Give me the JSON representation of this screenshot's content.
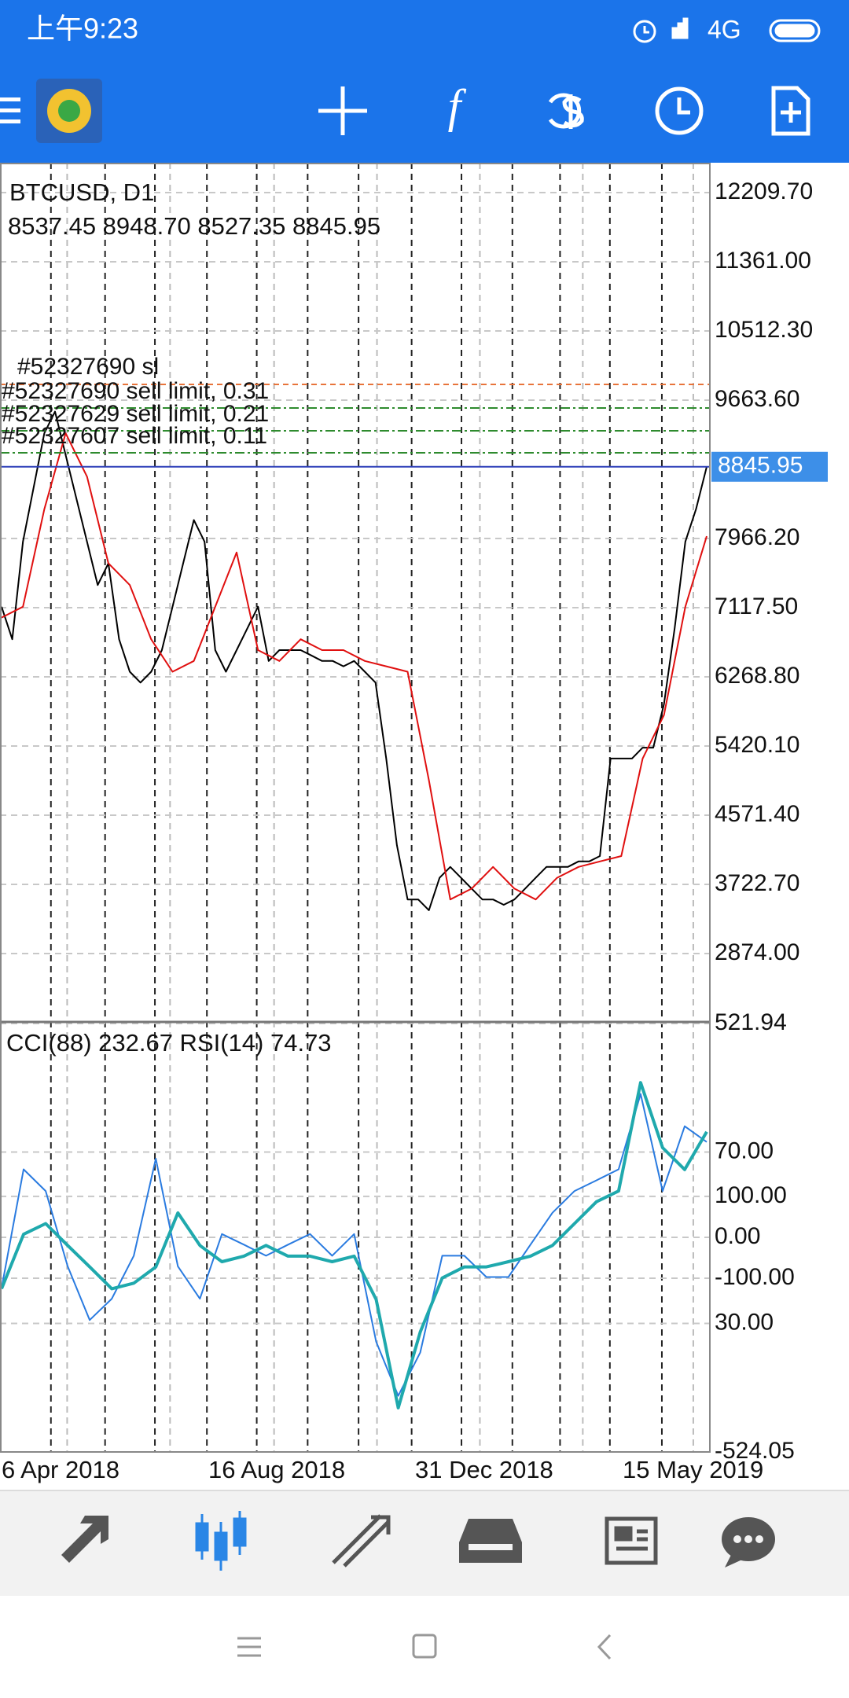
{
  "status_bar": {
    "time": "上午9:23",
    "network": "4G"
  },
  "chart_data": [
    {
      "type": "line",
      "title": "BTCUSD, D1",
      "subtitle": "8537.45 8948.70 8527.35 8845.95",
      "ylim": [
        2035,
        12576
      ],
      "yticks": [
        {
          "value": 12209.7,
          "label": "12209.70"
        },
        {
          "value": 11361,
          "label": "11361.00"
        },
        {
          "value": 10512.3,
          "label": "10512.30"
        },
        {
          "value": 9663.6,
          "label": "9663.60"
        },
        {
          "value": 7966.2,
          "label": "7966.20"
        },
        {
          "value": 7117.5,
          "label": "7117.50"
        },
        {
          "value": 6268.8,
          "label": "6268.80"
        },
        {
          "value": 5420.1,
          "label": "5420.10"
        },
        {
          "value": 4571.4,
          "label": "4571.40"
        },
        {
          "value": 3722.7,
          "label": "3722.70"
        },
        {
          "value": 2874,
          "label": "2874.00"
        }
      ],
      "grid": true,
      "current_price": {
        "value": 8845.95,
        "label": "8845.95",
        "color": "#3d8fe8"
      },
      "orders": [
        {
          "label": "#52327690 sl",
          "value": 9856,
          "color": "#e8743b"
        },
        {
          "label": "#52327690 sell limit, 0.31",
          "value": 9567,
          "color": "#2e8b2e"
        },
        {
          "label": "#52327629 sell limit, 0.21",
          "value": 9287,
          "color": "#2e8b2e"
        },
        {
          "label": "#52327607 sell limit, 0.11",
          "value": 9017,
          "color": "#2e8b2e"
        }
      ],
      "x_labels": [
        "6 Apr 2018",
        "16 Aug 2018",
        "31 Dec 2018",
        "15 May 2019"
      ],
      "series": [
        {
          "color": "#000000",
          "values": [
            7129,
            6730,
            7927,
            8592,
            9257,
            9523,
            8991,
            8459,
            7927,
            7395,
            7661,
            6730,
            6331,
            6198,
            6331,
            6597,
            7129,
            7661,
            8193,
            7927,
            6597,
            6331,
            6597,
            6863,
            7129,
            6464,
            6597,
            6597,
            6597,
            6531,
            6464,
            6464,
            6398,
            6464,
            6331,
            6198,
            5267,
            4203,
            3538,
            3538,
            3405,
            3804,
            3937,
            3804,
            3671,
            3538,
            3538,
            3472,
            3538,
            3671,
            3804,
            3937,
            3937,
            3937,
            4004,
            4004,
            4070,
            5267,
            5267,
            5267,
            5400,
            5400,
            5932,
            6863,
            7927,
            8326,
            8845.95
          ]
        },
        {
          "color": "#e01010",
          "values": [
            6996,
            7129,
            8326,
            9257,
            8725,
            7661,
            7395,
            6730,
            6331,
            6464,
            7129,
            7794,
            6597,
            6464,
            6730,
            6597,
            6597,
            6464,
            6398,
            6331,
            5001,
            3538,
            3671,
            3937,
            3671,
            3538,
            3804,
            3937,
            4004,
            4070,
            5267,
            5799,
            7129,
            7994
          ]
        }
      ]
    },
    {
      "type": "line",
      "title": "CCI(88) 232.67 RSI(14) 74.73",
      "ylim": [
        -524.05,
        521.94
      ],
      "yticks": [
        {
          "value": 521.94,
          "label": "521.94"
        },
        {
          "value": 100,
          "label": "100.00"
        },
        {
          "value": 0,
          "label": "0.00"
        },
        {
          "value": -100,
          "label": "-100.00"
        },
        {
          "value": -524.05,
          "label": "-524.05"
        }
      ],
      "y2lim": [
        0,
        100
      ],
      "y2ticks": [
        {
          "value": 70,
          "label": "70.00"
        },
        {
          "value": 30,
          "label": "30.00"
        }
      ],
      "grid": true,
      "series": [
        {
          "color": "#2a7be0",
          "values": [
            -124,
            166,
            113,
            -71,
            -202,
            -150,
            -45,
            192,
            -71,
            -150,
            8,
            -18,
            -45,
            -18,
            8,
            -45,
            8,
            -255,
            -387,
            -281,
            -45,
            -45,
            -97,
            -97,
            -18,
            60,
            113,
            139,
            166,
            350,
            113,
            271,
            232.67
          ]
        },
        {
          "color": "#1fa9ad",
          "axis": "y2",
          "values": [
            38.1,
            50.8,
            53.3,
            48.2,
            43.2,
            38.1,
            39.4,
            43.2,
            55.8,
            48.2,
            44.4,
            45.7,
            48.2,
            45.7,
            45.7,
            44.4,
            45.7,
            35.6,
            10.3,
            28,
            40.6,
            43.2,
            43.2,
            44.4,
            45.7,
            48.2,
            53.3,
            58.4,
            60.9,
            86.2,
            71,
            65.9,
            74.73
          ]
        }
      ]
    }
  ]
}
